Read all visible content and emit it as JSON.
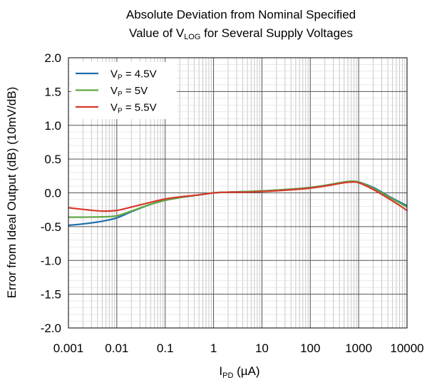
{
  "chart_data": {
    "type": "line",
    "title": {
      "line1": "Absolute Deviation from Nominal Specified",
      "line2_prefix": "Value of V",
      "line2_sub": "LOG",
      "line2_suffix": " for Several Supply Voltages"
    },
    "xlabel": {
      "prefix": "I",
      "sub": "PD",
      "suffix": " (µA)"
    },
    "ylabel": "Error from Ideal Output (dB) (10mV/dB)",
    "x_scale": "log",
    "xlim": [
      0.001,
      10000
    ],
    "ylim": [
      -2.0,
      2.0
    ],
    "x_ticks": [
      "0.001",
      "0.01",
      "0.1",
      "1",
      "10",
      "100",
      "1000",
      "10000"
    ],
    "y_ticks": [
      "2.0",
      "1.5",
      "1.0",
      "0.5",
      "0.0",
      "-0.5",
      "-1.0",
      "-1.5",
      "-2.0"
    ],
    "grid": true,
    "legend_position": "top-left",
    "series": [
      {
        "name": {
          "prefix": "V",
          "sub": "P",
          "suffix": " = 4.5V"
        },
        "color": "#1f6fae",
        "x": [
          0.001,
          0.002,
          0.005,
          0.01,
          0.02,
          0.05,
          0.1,
          0.2,
          0.5,
          1,
          2,
          5,
          10,
          20,
          50,
          100,
          200,
          500,
          700,
          1000,
          2000,
          5000,
          10000
        ],
        "y": [
          -0.48,
          -0.46,
          -0.42,
          -0.37,
          -0.28,
          -0.17,
          -0.11,
          -0.07,
          -0.03,
          0.0,
          0.01,
          0.02,
          0.02,
          0.04,
          0.06,
          0.08,
          0.11,
          0.16,
          0.17,
          0.16,
          0.08,
          -0.08,
          -0.19
        ]
      },
      {
        "name": {
          "prefix": "V",
          "sub": "P",
          "suffix": " = 5V"
        },
        "color": "#5fa743",
        "x": [
          0.001,
          0.002,
          0.005,
          0.01,
          0.02,
          0.05,
          0.1,
          0.2,
          0.5,
          1,
          2,
          5,
          10,
          20,
          50,
          100,
          200,
          500,
          700,
          1000,
          2000,
          5000,
          10000
        ],
        "y": [
          -0.36,
          -0.36,
          -0.355,
          -0.34,
          -0.27,
          -0.17,
          -0.11,
          -0.07,
          -0.03,
          0.0,
          0.01,
          0.02,
          0.03,
          0.04,
          0.06,
          0.08,
          0.11,
          0.16,
          0.17,
          0.16,
          0.07,
          -0.09,
          -0.21
        ]
      },
      {
        "name": {
          "prefix": "V",
          "sub": "P",
          "suffix": " = 5.5V"
        },
        "color": "#d6392b",
        "x": [
          0.001,
          0.002,
          0.005,
          0.01,
          0.02,
          0.05,
          0.1,
          0.2,
          0.5,
          1,
          2,
          5,
          10,
          20,
          50,
          100,
          200,
          500,
          700,
          1000,
          2000,
          5000,
          10000
        ],
        "y": [
          -0.22,
          -0.245,
          -0.27,
          -0.26,
          -0.21,
          -0.14,
          -0.09,
          -0.06,
          -0.03,
          0.0,
          0.01,
          0.01,
          0.02,
          0.03,
          0.05,
          0.07,
          0.1,
          0.15,
          0.16,
          0.15,
          0.05,
          -0.12,
          -0.26
        ]
      }
    ]
  }
}
